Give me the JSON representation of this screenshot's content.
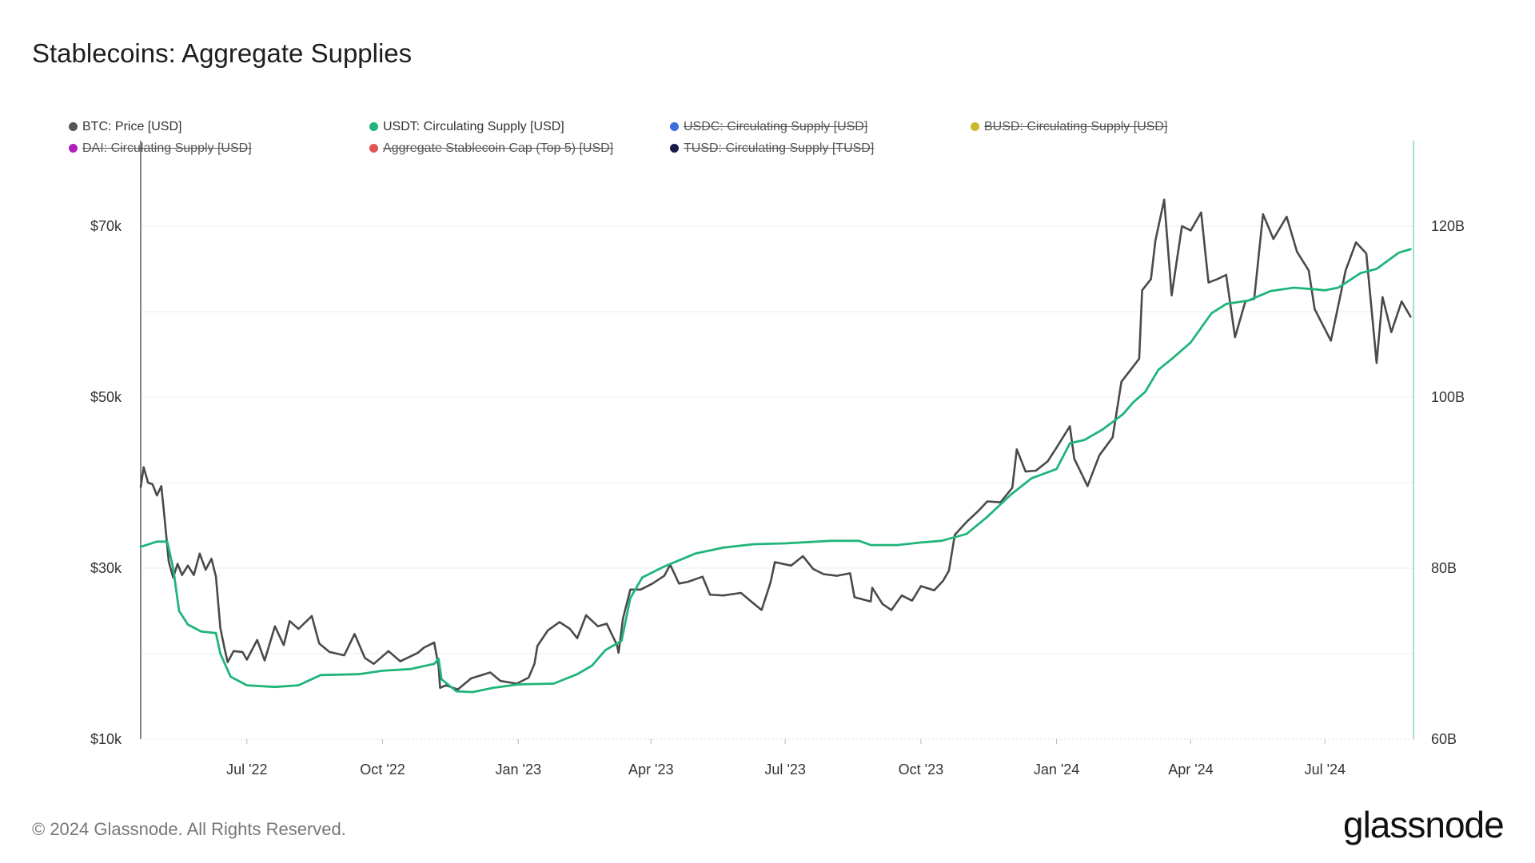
{
  "title": "Stablecoins: Aggregate Supplies",
  "legend": [
    {
      "label": "BTC: Price [USD]",
      "color": "#555555",
      "active": true
    },
    {
      "label": "USDT: Circulating Supply [USD]",
      "color": "#1fb57a",
      "active": true
    },
    {
      "label": "USDC: Circulating Supply [USD]",
      "color": "#3b6fe0",
      "active": false
    },
    {
      "label": "BUSD: Circulating Supply [USD]",
      "color": "#c9b92a",
      "active": false
    },
    {
      "label": "DAI: Circulating Supply [USD]",
      "color": "#b020c0",
      "active": false
    },
    {
      "label": "Aggregate Stablecoin Cap (Top 5) [USD]",
      "color": "#e05555",
      "active": false
    },
    {
      "label": "TUSD: Circulating Supply [TUSD]",
      "color": "#1a1a4a",
      "active": false
    }
  ],
  "footer": "© 2024 Glassnode. All Rights Reserved.",
  "brand": "glassnode",
  "chart_data": {
    "type": "line",
    "x_ticks": [
      "Jul '22",
      "Oct '22",
      "Jan '23",
      "Apr '23",
      "Jul '23",
      "Oct '23",
      "Jan '24",
      "Apr '24",
      "Jul '24"
    ],
    "x_tick_dates": [
      "2022-07-01",
      "2022-10-01",
      "2023-01-01",
      "2023-04-01",
      "2023-07-01",
      "2023-10-01",
      "2024-01-01",
      "2024-04-01",
      "2024-07-01"
    ],
    "x_range": [
      "2022-04-20",
      "2024-08-30"
    ],
    "y_left": {
      "ticks": [
        "$10k",
        "$30k",
        "$50k",
        "$70k"
      ],
      "tick_values": [
        10000,
        30000,
        50000,
        70000
      ],
      "range": [
        10000,
        80000
      ]
    },
    "y_right": {
      "ticks": [
        "60B",
        "80B",
        "100B",
        "120B"
      ],
      "tick_values": [
        60,
        80,
        100,
        120
      ],
      "range": [
        60,
        130
      ]
    },
    "grid": true,
    "series": [
      {
        "name": "BTC: Price [USD]",
        "axis": "left",
        "color": "#4a4a4a",
        "points": [
          [
            "2022-04-20",
            39500
          ],
          [
            "2022-04-22",
            41800
          ],
          [
            "2022-04-25",
            40000
          ],
          [
            "2022-04-28",
            39800
          ],
          [
            "2022-05-01",
            38500
          ],
          [
            "2022-05-04",
            39600
          ],
          [
            "2022-05-06",
            36200
          ],
          [
            "2022-05-09",
            30800
          ],
          [
            "2022-05-12",
            28900
          ],
          [
            "2022-05-15",
            30500
          ],
          [
            "2022-05-18",
            29200
          ],
          [
            "2022-05-22",
            30300
          ],
          [
            "2022-05-26",
            29200
          ],
          [
            "2022-05-30",
            31700
          ],
          [
            "2022-06-03",
            29800
          ],
          [
            "2022-06-07",
            31100
          ],
          [
            "2022-06-10",
            29000
          ],
          [
            "2022-06-13",
            23000
          ],
          [
            "2022-06-16",
            20500
          ],
          [
            "2022-06-18",
            19000
          ],
          [
            "2022-06-22",
            20300
          ],
          [
            "2022-06-28",
            20200
          ],
          [
            "2022-07-01",
            19300
          ],
          [
            "2022-07-08",
            21600
          ],
          [
            "2022-07-13",
            19200
          ],
          [
            "2022-07-20",
            23200
          ],
          [
            "2022-07-26",
            21000
          ],
          [
            "2022-07-30",
            23800
          ],
          [
            "2022-08-05",
            22900
          ],
          [
            "2022-08-14",
            24400
          ],
          [
            "2022-08-19",
            21200
          ],
          [
            "2022-08-26",
            20200
          ],
          [
            "2022-09-05",
            19800
          ],
          [
            "2022-09-12",
            22300
          ],
          [
            "2022-09-19",
            19500
          ],
          [
            "2022-09-25",
            18800
          ],
          [
            "2022-10-05",
            20300
          ],
          [
            "2022-10-13",
            19100
          ],
          [
            "2022-10-25",
            20100
          ],
          [
            "2022-10-29",
            20700
          ],
          [
            "2022-11-05",
            21300
          ],
          [
            "2022-11-08",
            18500
          ],
          [
            "2022-11-09",
            16000
          ],
          [
            "2022-11-13",
            16300
          ],
          [
            "2022-11-21",
            15800
          ],
          [
            "2022-11-30",
            17100
          ],
          [
            "2022-12-13",
            17800
          ],
          [
            "2022-12-20",
            16800
          ],
          [
            "2022-12-31",
            16500
          ],
          [
            "2023-01-08",
            17200
          ],
          [
            "2023-01-12",
            18800
          ],
          [
            "2023-01-14",
            20900
          ],
          [
            "2023-01-21",
            22700
          ],
          [
            "2023-01-29",
            23700
          ],
          [
            "2023-02-05",
            22900
          ],
          [
            "2023-02-10",
            21800
          ],
          [
            "2023-02-16",
            24500
          ],
          [
            "2023-02-24",
            23200
          ],
          [
            "2023-03-02",
            23500
          ],
          [
            "2023-03-09",
            21000
          ],
          [
            "2023-03-10",
            20100
          ],
          [
            "2023-03-13",
            24100
          ],
          [
            "2023-03-18",
            27500
          ],
          [
            "2023-03-25",
            27500
          ],
          [
            "2023-04-02",
            28200
          ],
          [
            "2023-04-10",
            29100
          ],
          [
            "2023-04-14",
            30400
          ],
          [
            "2023-04-20",
            28200
          ],
          [
            "2023-04-26",
            28400
          ],
          [
            "2023-05-06",
            29000
          ],
          [
            "2023-05-11",
            26900
          ],
          [
            "2023-05-20",
            26800
          ],
          [
            "2023-06-01",
            27100
          ],
          [
            "2023-06-10",
            25800
          ],
          [
            "2023-06-15",
            25100
          ],
          [
            "2023-06-21",
            28300
          ],
          [
            "2023-06-24",
            30700
          ],
          [
            "2023-07-05",
            30300
          ],
          [
            "2023-07-13",
            31400
          ],
          [
            "2023-07-20",
            29900
          ],
          [
            "2023-07-27",
            29300
          ],
          [
            "2023-08-05",
            29100
          ],
          [
            "2023-08-14",
            29400
          ],
          [
            "2023-08-17",
            26600
          ],
          [
            "2023-08-28",
            26100
          ],
          [
            "2023-08-29",
            27700
          ],
          [
            "2023-09-05",
            25800
          ],
          [
            "2023-09-11",
            25100
          ],
          [
            "2023-09-18",
            26800
          ],
          [
            "2023-09-25",
            26200
          ],
          [
            "2023-10-01",
            27900
          ],
          [
            "2023-10-10",
            27400
          ],
          [
            "2023-10-16",
            28500
          ],
          [
            "2023-10-20",
            29700
          ],
          [
            "2023-10-24",
            33900
          ],
          [
            "2023-11-01",
            35400
          ],
          [
            "2023-11-09",
            36700
          ],
          [
            "2023-11-15",
            37800
          ],
          [
            "2023-11-24",
            37700
          ],
          [
            "2023-12-02",
            39400
          ],
          [
            "2023-12-05",
            43900
          ],
          [
            "2023-12-11",
            41300
          ],
          [
            "2023-12-18",
            41400
          ],
          [
            "2023-12-26",
            42500
          ],
          [
            "2024-01-01",
            44100
          ],
          [
            "2024-01-10",
            46600
          ],
          [
            "2024-01-13",
            42800
          ],
          [
            "2024-01-22",
            39600
          ],
          [
            "2024-01-30",
            43200
          ],
          [
            "2024-02-08",
            45300
          ],
          [
            "2024-02-14",
            51800
          ],
          [
            "2024-02-26",
            54500
          ],
          [
            "2024-02-28",
            62500
          ],
          [
            "2024-03-05",
            63800
          ],
          [
            "2024-03-08",
            68300
          ],
          [
            "2024-03-14",
            73100
          ],
          [
            "2024-03-19",
            61900
          ],
          [
            "2024-03-26",
            70000
          ],
          [
            "2024-04-01",
            69500
          ],
          [
            "2024-04-08",
            71600
          ],
          [
            "2024-04-13",
            63400
          ],
          [
            "2024-04-19",
            63800
          ],
          [
            "2024-04-25",
            64300
          ],
          [
            "2024-05-01",
            57000
          ],
          [
            "2024-05-08",
            61200
          ],
          [
            "2024-05-14",
            61500
          ],
          [
            "2024-05-20",
            71400
          ],
          [
            "2024-05-27",
            68500
          ],
          [
            "2024-06-05",
            71100
          ],
          [
            "2024-06-12",
            67000
          ],
          [
            "2024-06-20",
            64800
          ],
          [
            "2024-06-24",
            60300
          ],
          [
            "2024-07-05",
            56600
          ],
          [
            "2024-07-15",
            64800
          ],
          [
            "2024-07-22",
            68100
          ],
          [
            "2024-07-29",
            66800
          ],
          [
            "2024-08-05",
            54000
          ],
          [
            "2024-08-09",
            61700
          ],
          [
            "2024-08-15",
            57600
          ],
          [
            "2024-08-22",
            61200
          ],
          [
            "2024-08-28",
            59400
          ]
        ]
      },
      {
        "name": "USDT: Circulating Supply [USD]",
        "axis": "right",
        "color": "#1fb57a",
        "points": [
          [
            "2022-04-20",
            82.5
          ],
          [
            "2022-05-01",
            83.1
          ],
          [
            "2022-05-08",
            83.1
          ],
          [
            "2022-05-12",
            80.0
          ],
          [
            "2022-05-16",
            75.0
          ],
          [
            "2022-05-22",
            73.4
          ],
          [
            "2022-05-31",
            72.6
          ],
          [
            "2022-06-10",
            72.4
          ],
          [
            "2022-06-13",
            70.0
          ],
          [
            "2022-06-20",
            67.3
          ],
          [
            "2022-07-01",
            66.3
          ],
          [
            "2022-07-20",
            66.1
          ],
          [
            "2022-08-05",
            66.3
          ],
          [
            "2022-08-20",
            67.5
          ],
          [
            "2022-09-15",
            67.6
          ],
          [
            "2022-10-01",
            68.0
          ],
          [
            "2022-10-20",
            68.2
          ],
          [
            "2022-11-05",
            68.8
          ],
          [
            "2022-11-08",
            69.4
          ],
          [
            "2022-11-10",
            67.0
          ],
          [
            "2022-11-20",
            65.6
          ],
          [
            "2022-12-01",
            65.5
          ],
          [
            "2022-12-15",
            66.0
          ],
          [
            "2023-01-01",
            66.4
          ],
          [
            "2023-01-25",
            66.5
          ],
          [
            "2023-02-10",
            67.6
          ],
          [
            "2023-02-20",
            68.6
          ],
          [
            "2023-03-01",
            70.4
          ],
          [
            "2023-03-12",
            71.5
          ],
          [
            "2023-03-18",
            76.5
          ],
          [
            "2023-03-26",
            78.9
          ],
          [
            "2023-04-10",
            80.2
          ],
          [
            "2023-05-01",
            81.7
          ],
          [
            "2023-05-20",
            82.4
          ],
          [
            "2023-06-10",
            82.8
          ],
          [
            "2023-07-01",
            82.9
          ],
          [
            "2023-08-01",
            83.2
          ],
          [
            "2023-08-20",
            83.2
          ],
          [
            "2023-08-28",
            82.7
          ],
          [
            "2023-09-15",
            82.7
          ],
          [
            "2023-10-01",
            83.0
          ],
          [
            "2023-10-15",
            83.2
          ],
          [
            "2023-11-01",
            84.0
          ],
          [
            "2023-11-15",
            86.0
          ],
          [
            "2023-12-01",
            88.6
          ],
          [
            "2023-12-15",
            90.5
          ],
          [
            "2024-01-01",
            91.6
          ],
          [
            "2024-01-10",
            94.6
          ],
          [
            "2024-01-20",
            95.0
          ],
          [
            "2024-02-01",
            96.2
          ],
          [
            "2024-02-15",
            98.0
          ],
          [
            "2024-02-22",
            99.4
          ],
          [
            "2024-03-01",
            100.6
          ],
          [
            "2024-03-10",
            103.2
          ],
          [
            "2024-03-20",
            104.6
          ],
          [
            "2024-04-01",
            106.4
          ],
          [
            "2024-04-15",
            109.8
          ],
          [
            "2024-04-25",
            110.9
          ],
          [
            "2024-05-10",
            111.3
          ],
          [
            "2024-05-25",
            112.4
          ],
          [
            "2024-06-10",
            112.8
          ],
          [
            "2024-06-25",
            112.6
          ],
          [
            "2024-07-01",
            112.5
          ],
          [
            "2024-07-10",
            112.8
          ],
          [
            "2024-07-25",
            114.5
          ],
          [
            "2024-08-05",
            115.0
          ],
          [
            "2024-08-20",
            116.9
          ],
          [
            "2024-08-28",
            117.3
          ]
        ]
      }
    ]
  }
}
